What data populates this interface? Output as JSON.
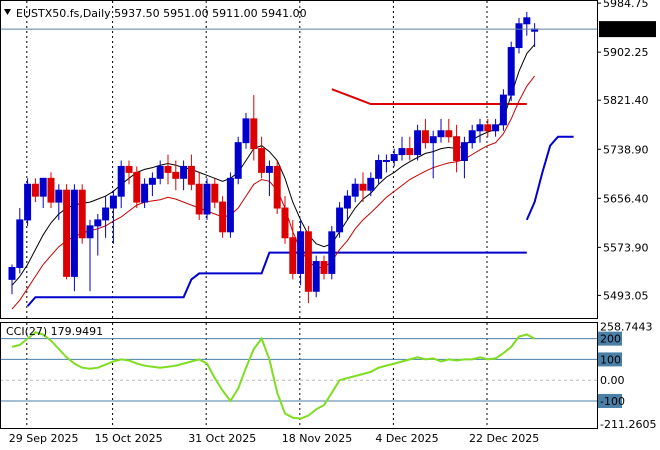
{
  "chart_data": {
    "type": "candlestick",
    "title": "EUSTX50.fs,Daily  5937.50 5951.00 5911.00 5941.00",
    "symbol": "EUSTX50.fs",
    "timeframe": "Daily",
    "ohlc_label": "5937.50 5951.00 5911.00 5941.00",
    "last_price_label": "5941.00",
    "colors": {
      "bull": "#0000cc",
      "bear": "#dd0000",
      "ma_fast": "#000000",
      "ma_slow": "#cc0000",
      "trend": "#dd0000",
      "stop_up": "#0000cc",
      "cci": "#7fdd22",
      "level_line": "#4a7fa8"
    },
    "price_axis": {
      "ylim": [
        5455,
        5990
      ],
      "ticks": [
        "5984.75",
        "5902.25",
        "5821.40",
        "5738.90",
        "5656.40",
        "5573.90",
        "5493.05"
      ]
    },
    "x_axis": {
      "labels": [
        "29 Sep 2025",
        "15 Oct 2025",
        "31 Oct 2025",
        "18 Nov 2025",
        "4 Dec 2025",
        "22 Dec 2025"
      ]
    },
    "candles": [
      [
        5520,
        5545,
        5495,
        5540
      ],
      [
        5540,
        5640,
        5530,
        5620
      ],
      [
        5620,
        5690,
        5610,
        5680
      ],
      [
        5680,
        5690,
        5650,
        5660
      ],
      [
        5660,
        5690,
        5640,
        5690
      ],
      [
        5690,
        5700,
        5640,
        5650
      ],
      [
        5650,
        5680,
        5620,
        5670
      ],
      [
        5670,
        5680,
        5520,
        5525
      ],
      [
        5525,
        5680,
        5500,
        5670
      ],
      [
        5670,
        5680,
        5580,
        5590
      ],
      [
        5590,
        5620,
        5500,
        5610
      ],
      [
        5610,
        5630,
        5560,
        5620
      ],
      [
        5620,
        5660,
        5590,
        5640
      ],
      [
        5640,
        5670,
        5580,
        5660
      ],
      [
        5660,
        5720,
        5640,
        5710
      ],
      [
        5710,
        5720,
        5680,
        5700
      ],
      [
        5700,
        5710,
        5640,
        5650
      ],
      [
        5650,
        5690,
        5640,
        5680
      ],
      [
        5680,
        5700,
        5660,
        5690
      ],
      [
        5690,
        5720,
        5680,
        5710
      ],
      [
        5710,
        5730,
        5680,
        5700
      ],
      [
        5700,
        5720,
        5670,
        5690
      ],
      [
        5690,
        5720,
        5670,
        5710
      ],
      [
        5710,
        5730,
        5670,
        5680
      ],
      [
        5680,
        5700,
        5620,
        5630
      ],
      [
        5630,
        5690,
        5620,
        5680
      ],
      [
        5680,
        5690,
        5640,
        5650
      ],
      [
        5650,
        5660,
        5590,
        5600
      ],
      [
        5600,
        5700,
        5590,
        5690
      ],
      [
        5690,
        5760,
        5680,
        5750
      ],
      [
        5750,
        5800,
        5740,
        5790
      ],
      [
        5790,
        5830,
        5720,
        5740
      ],
      [
        5740,
        5760,
        5690,
        5700
      ],
      [
        5700,
        5720,
        5660,
        5710
      ],
      [
        5710,
        5720,
        5630,
        5640
      ],
      [
        5640,
        5660,
        5580,
        5590
      ],
      [
        5590,
        5620,
        5520,
        5530
      ],
      [
        5530,
        5620,
        5510,
        5600
      ],
      [
        5600,
        5610,
        5480,
        5500
      ],
      [
        5500,
        5560,
        5490,
        5550
      ],
      [
        5550,
        5560,
        5520,
        5530
      ],
      [
        5530,
        5610,
        5520,
        5600
      ],
      [
        5600,
        5650,
        5590,
        5640
      ],
      [
        5640,
        5670,
        5620,
        5660
      ],
      [
        5660,
        5690,
        5650,
        5680
      ],
      [
        5680,
        5700,
        5650,
        5670
      ],
      [
        5670,
        5700,
        5660,
        5690
      ],
      [
        5690,
        5730,
        5680,
        5720
      ],
      [
        5720,
        5730,
        5700,
        5720
      ],
      [
        5720,
        5740,
        5710,
        5730
      ],
      [
        5730,
        5760,
        5720,
        5740
      ],
      [
        5740,
        5760,
        5720,
        5730
      ],
      [
        5730,
        5780,
        5720,
        5770
      ],
      [
        5770,
        5790,
        5740,
        5750
      ],
      [
        5750,
        5770,
        5690,
        5760
      ],
      [
        5760,
        5790,
        5750,
        5770
      ],
      [
        5770,
        5790,
        5750,
        5760
      ],
      [
        5760,
        5780,
        5700,
        5720
      ],
      [
        5720,
        5760,
        5690,
        5750
      ],
      [
        5750,
        5780,
        5740,
        5770
      ],
      [
        5770,
        5790,
        5750,
        5780
      ],
      [
        5780,
        5790,
        5760,
        5770
      ],
      [
        5770,
        5790,
        5760,
        5780
      ],
      [
        5780,
        5840,
        5770,
        5830
      ],
      [
        5830,
        5920,
        5820,
        5910
      ],
      [
        5910,
        5960,
        5900,
        5950
      ],
      [
        5950,
        5970,
        5930,
        5960
      ],
      [
        5937.5,
        5951,
        5911,
        5941
      ]
    ],
    "ma_fast": [
      5510,
      5525,
      5545,
      5570,
      5595,
      5615,
      5630,
      5640,
      5645,
      5648,
      5650,
      5655,
      5660,
      5668,
      5680,
      5690,
      5700,
      5705,
      5708,
      5712,
      5715,
      5712,
      5708,
      5705,
      5700,
      5695,
      5690,
      5685,
      5690,
      5700,
      5720,
      5740,
      5745,
      5735,
      5720,
      5690,
      5650,
      5620,
      5595,
      5580,
      5575,
      5580,
      5600,
      5620,
      5640,
      5655,
      5665,
      5680,
      5692,
      5700,
      5710,
      5718,
      5725,
      5732,
      5735,
      5740,
      5742,
      5740,
      5745,
      5755,
      5762,
      5768,
      5772,
      5790,
      5830,
      5870,
      5900,
      5915
    ],
    "ma_slow": [
      5470,
      5485,
      5505,
      5525,
      5545,
      5560,
      5575,
      5585,
      5592,
      5598,
      5602,
      5605,
      5610,
      5618,
      5625,
      5635,
      5645,
      5650,
      5652,
      5654,
      5658,
      5655,
      5650,
      5645,
      5640,
      5635,
      5630,
      5625,
      5628,
      5640,
      5660,
      5680,
      5688,
      5685,
      5670,
      5640,
      5600,
      5570,
      5550,
      5540,
      5540,
      5550,
      5570,
      5585,
      5605,
      5620,
      5632,
      5645,
      5658,
      5668,
      5678,
      5688,
      5695,
      5702,
      5708,
      5712,
      5716,
      5718,
      5722,
      5730,
      5738,
      5745,
      5750,
      5765,
      5790,
      5820,
      5845,
      5862
    ],
    "trend_line": [
      [
        41,
        5840
      ],
      [
        44,
        5825
      ],
      [
        46,
        5815
      ],
      [
        66,
        5815
      ]
    ],
    "support_line": [
      [
        2,
        5475
      ],
      [
        3,
        5490
      ],
      [
        22,
        5490
      ],
      [
        23,
        5520
      ],
      [
        24,
        5530
      ],
      [
        32,
        5530
      ],
      [
        33,
        5565
      ],
      [
        36,
        5565
      ],
      [
        66,
        5565
      ]
    ],
    "stop_up_line": [
      [
        66,
        5620
      ],
      [
        67,
        5650
      ],
      [
        68,
        5700
      ],
      [
        69,
        5745
      ],
      [
        70,
        5760
      ],
      [
        72,
        5760
      ]
    ],
    "cci": {
      "label": "CCI(27) 179.9491",
      "name": "CCI(27)",
      "value_label": "179.9491",
      "ylim": [
        -230,
        280
      ],
      "ticks": [
        "258.7443",
        "200",
        "100",
        "0.00",
        "-100",
        "-211.2605"
      ],
      "levels": [
        200,
        100,
        -100
      ],
      "values": [
        160,
        170,
        200,
        230,
        220,
        190,
        150,
        110,
        80,
        60,
        55,
        60,
        75,
        90,
        100,
        95,
        80,
        70,
        65,
        60,
        65,
        70,
        80,
        90,
        100,
        80,
        10,
        -50,
        -100,
        -40,
        60,
        150,
        200,
        100,
        -60,
        -160,
        -180,
        -185,
        -170,
        -140,
        -120,
        -60,
        0,
        10,
        20,
        30,
        40,
        60,
        70,
        80,
        90,
        100,
        110,
        100,
        105,
        90,
        100,
        95,
        100,
        100,
        110,
        100,
        105,
        130,
        160,
        210,
        220,
        200
      ]
    }
  }
}
